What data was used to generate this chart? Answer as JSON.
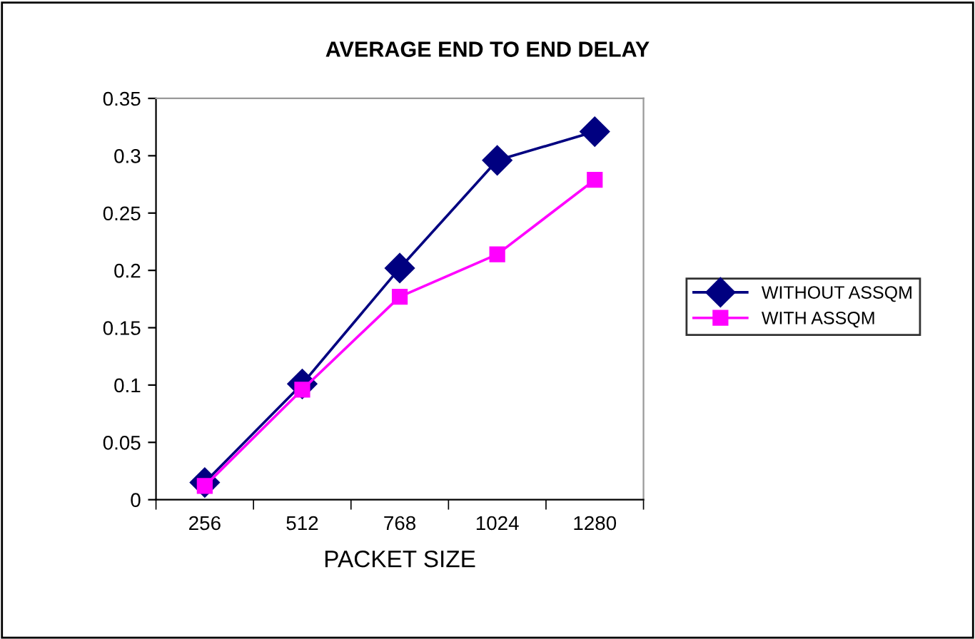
{
  "chart_data": {
    "type": "line",
    "title": "AVERAGE END TO END DELAY",
    "xlabel": "PACKET SIZE",
    "categories": [
      "256",
      "512",
      "768",
      "1024",
      "1280"
    ],
    "series": [
      {
        "name": "WITHOUT ASSQM",
        "color": "#000080",
        "marker": "diamond",
        "values": [
          0.015,
          0.101,
          0.202,
          0.296,
          0.321
        ]
      },
      {
        "name": "WITH ASSQM",
        "color": "#ff00ff",
        "marker": "square",
        "values": [
          0.012,
          0.096,
          0.177,
          0.214,
          0.279
        ]
      }
    ],
    "ylim": [
      0,
      0.35
    ],
    "yticks": [
      0,
      0.05,
      0.1,
      0.15,
      0.2,
      0.25,
      0.3,
      0.35
    ],
    "grid": false,
    "legend": "right",
    "line_style": "solid"
  }
}
